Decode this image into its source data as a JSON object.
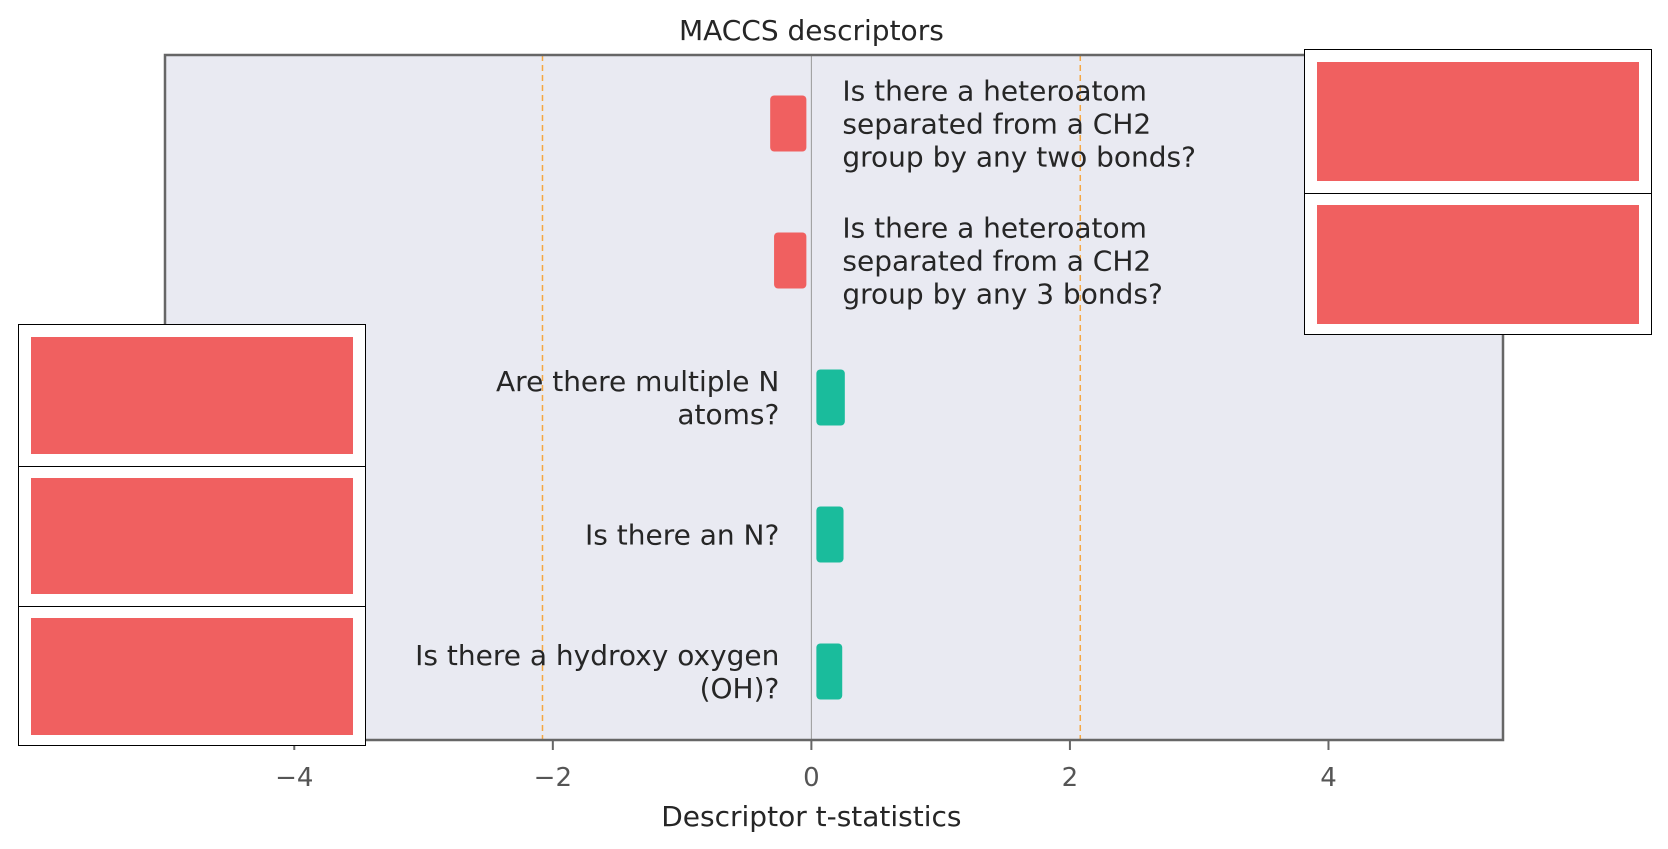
{
  "chart_data": {
    "type": "bar",
    "orientation": "horizontal",
    "title": "MACCS descriptors",
    "xlabel": "Descriptor t-statistics",
    "ylabel": "",
    "xlim": [
      -5.0,
      5.35
    ],
    "xticks": [
      -4,
      -2,
      0,
      2,
      4
    ],
    "xtick_labels": [
      "−4",
      "−2",
      "0",
      "2",
      "4"
    ],
    "thresholds": [
      -2.08,
      2.08
    ],
    "bars": [
      {
        "label_lines": [
          "Is there a heteroatom",
          "separated from a CH2",
          "group by any two bonds?"
        ],
        "value": -0.28
      },
      {
        "label_lines": [
          "Is there a heteroatom",
          "separated from a CH2",
          "group by any 3 bonds?"
        ],
        "value": -0.25
      },
      {
        "label_lines": [
          "Are there multiple N",
          "atoms?"
        ],
        "value": 0.22
      },
      {
        "label_lines": [
          "Is there an N?"
        ],
        "value": 0.21
      },
      {
        "label_lines": [
          "Is there a hydroxy oxygen",
          "(OH)?"
        ],
        "value": 0.2
      }
    ]
  },
  "colors": {
    "negative": "#f06060",
    "positive": "#1abc9c",
    "plot_background": "#e9eaf2",
    "frame": "#666666",
    "threshold": "#f5a742",
    "zero_line": "#999999",
    "text": "#262626",
    "tick_text": "#555555",
    "inset_fill": "#f06060"
  },
  "insets": [
    {
      "position": "top-right",
      "count": 2
    },
    {
      "position": "bottom-left",
      "count": 3
    }
  ]
}
